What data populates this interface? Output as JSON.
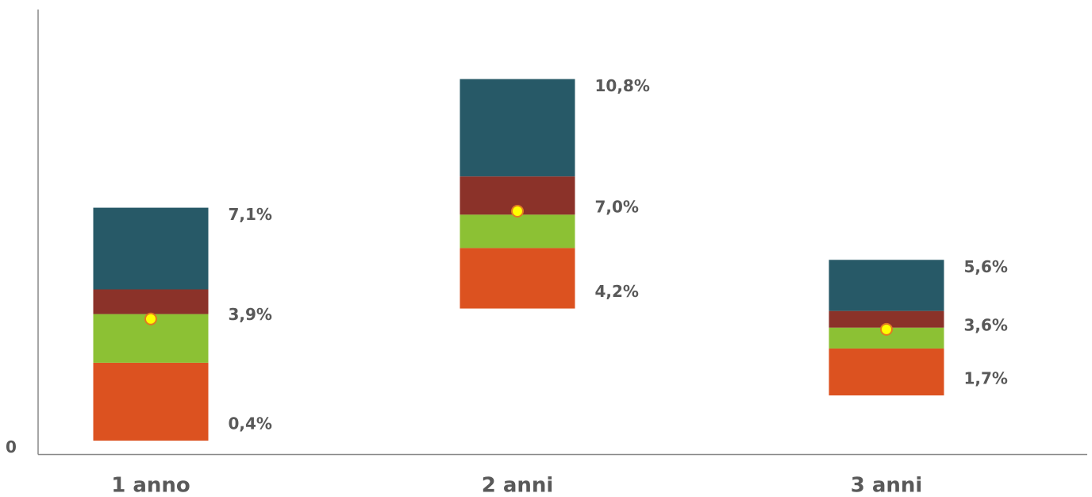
{
  "chart_data": {
    "type": "floating-stacked-bar",
    "categories": [
      "1 anno",
      "2 anni",
      "3 anni"
    ],
    "low": [
      0.4,
      4.2,
      1.7
    ],
    "low_labels": [
      "0,4%",
      "4,2%",
      "1,7%"
    ],
    "mid": [
      3.9,
      7.0,
      3.6
    ],
    "mid_labels": [
      "3,9%",
      "7,0%",
      "3,6%"
    ],
    "high": [
      7.1,
      10.8,
      5.6
    ],
    "high_labels": [
      "7,1%",
      "10,8%",
      "5,6%"
    ],
    "series": [
      {
        "color": "#dc5220",
        "values": [
          2.24,
          1.74,
          1.35
        ]
      },
      {
        "color": "#8cc134",
        "values": [
          1.4,
          0.96,
          0.6
        ]
      },
      {
        "color": "#8b3229",
        "values": [
          0.71,
          1.1,
          0.48
        ]
      },
      {
        "color": "#275967",
        "values": [
          2.35,
          2.8,
          1.47
        ]
      }
    ],
    "marker_color": "#ffff00",
    "ylim": [
      0,
      12.8
    ],
    "yticks": [
      0
    ]
  }
}
